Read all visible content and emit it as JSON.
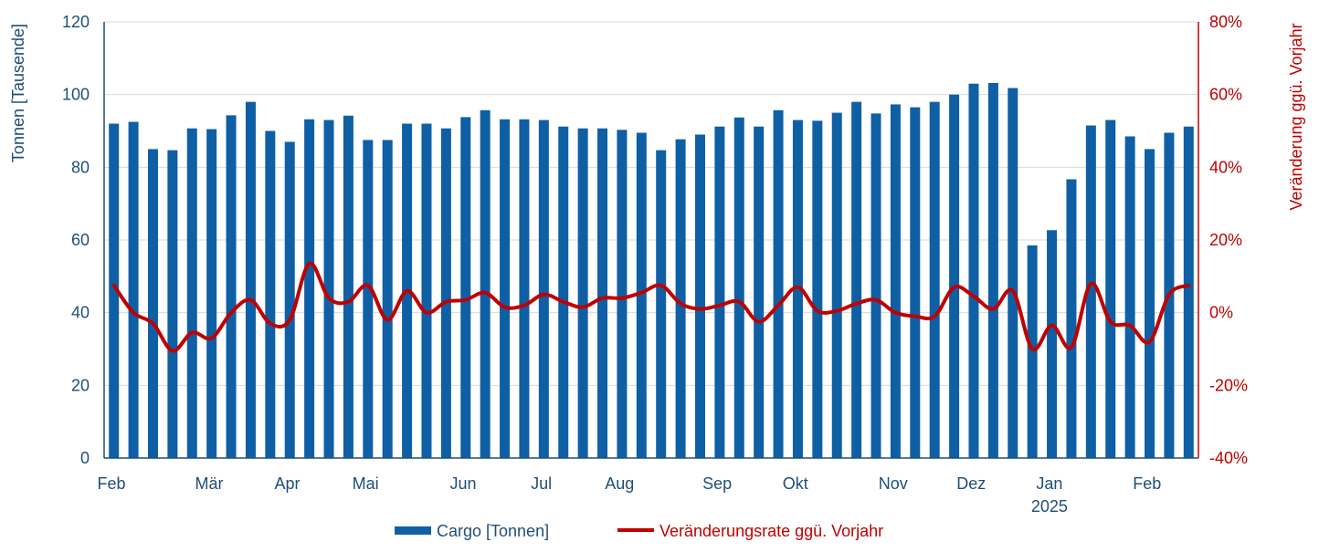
{
  "chart_data": {
    "type": "bar",
    "x_tick_labels": [
      "Feb",
      "Mär",
      "Apr",
      "Mai",
      "Jun",
      "Jul",
      "Aug",
      "Sep",
      "Okt",
      "Nov",
      "Dez",
      "Jan",
      "Feb"
    ],
    "year_label": "2025",
    "ylabel_left": "Tonnen [Tausende]",
    "ylabel_right": "Veränderung ggü. Vorjahr",
    "ylim_left": [
      0,
      120
    ],
    "yticks_left": [
      "0",
      "20",
      "40",
      "60",
      "80",
      "100",
      "120"
    ],
    "ylim_right": [
      -40,
      80
    ],
    "yticks_right": [
      "-40%",
      "-20%",
      "0%",
      "20%",
      "40%",
      "60%",
      "80%"
    ],
    "grid": true,
    "legend_position": "bottom",
    "series": [
      {
        "name": "Cargo [Tonnen]",
        "type": "bar",
        "axis": "left",
        "color": "#0F5FA5",
        "values": [
          92,
          92.5,
          85,
          84.7,
          90.7,
          90.5,
          94.3,
          98,
          90,
          87,
          93.2,
          93,
          94.2,
          87.5,
          87.5,
          92,
          92,
          90.7,
          93.8,
          95.7,
          93.2,
          93.2,
          93,
          91.2,
          90.7,
          90.7,
          90.3,
          89.5,
          84.7,
          87.7,
          89,
          91.2,
          93.7,
          91.2,
          95.7,
          93,
          92.8,
          95,
          98,
          94.8,
          97.3,
          96.5,
          98,
          100,
          103,
          103.2,
          101.8,
          58.5,
          62.7,
          76.7,
          91.5,
          93,
          88.5,
          85,
          89.5,
          91.2
        ]
      },
      {
        "name": "Veränderungsrate ggü. Vorjahr",
        "type": "line",
        "axis": "right",
        "color": "#C00000",
        "values": [
          7.5,
          0,
          -3,
          -10.5,
          -5.5,
          -7,
          0,
          3.5,
          -3,
          -2,
          13.5,
          4,
          3,
          7.5,
          -2,
          6,
          0,
          3,
          3.5,
          5.5,
          1.5,
          2,
          5,
          3,
          1.5,
          4,
          4,
          5.5,
          7.5,
          2.5,
          1,
          2,
          3,
          -2.5,
          2,
          7,
          0.5,
          0.5,
          2.5,
          3.5,
          0,
          -1,
          -1,
          7,
          4.5,
          1,
          6,
          -10,
          -3.5,
          -9.5,
          8,
          -2.5,
          -3.5,
          -8,
          5,
          7.5
        ]
      }
    ]
  }
}
